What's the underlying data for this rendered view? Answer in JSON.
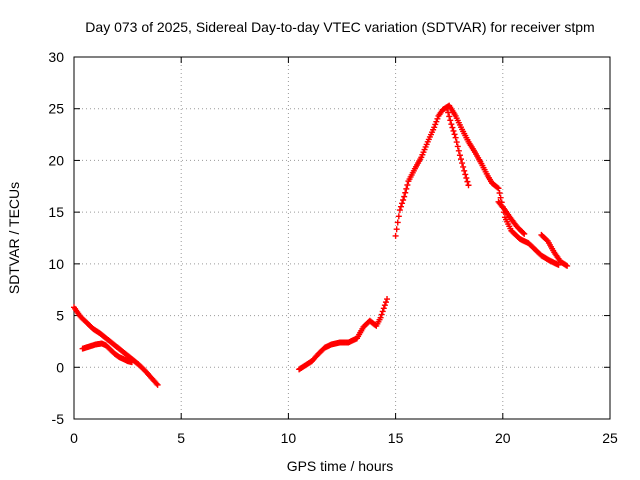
{
  "chart_data": {
    "type": "scatter",
    "title": "Day 073 of 2025, Sidereal Day-to-day VTEC variation (SDTVAR) for receiver stpm",
    "xlabel": "GPS time / hours",
    "ylabel": "SDTVAR / TECUs",
    "xlim": [
      0,
      25
    ],
    "ylim": [
      -5,
      30
    ],
    "x_ticks": [
      0,
      5,
      10,
      15,
      20,
      25
    ],
    "y_ticks": [
      -5,
      0,
      5,
      10,
      15,
      20,
      25,
      30
    ],
    "grid": true,
    "marker": "+",
    "series": [
      {
        "name": "SDTVAR",
        "color": "#ff0000",
        "segments": [
          {
            "points": [
              [
                0.0,
                5.8
              ],
              [
                0.3,
                4.9
              ],
              [
                0.6,
                4.3
              ],
              [
                0.9,
                3.7
              ],
              [
                1.2,
                3.3
              ],
              [
                1.5,
                2.8
              ],
              [
                1.8,
                2.3
              ],
              [
                2.1,
                1.8
              ],
              [
                2.4,
                1.3
              ],
              [
                2.7,
                0.8
              ],
              [
                3.0,
                0.3
              ],
              [
                3.3,
                -0.3
              ],
              [
                3.6,
                -1.0
              ],
              [
                3.9,
                -1.7
              ]
            ]
          },
          {
            "points": [
              [
                0.4,
                1.8
              ],
              [
                0.7,
                2.0
              ],
              [
                1.0,
                2.2
              ],
              [
                1.3,
                2.3
              ],
              [
                1.5,
                2.1
              ],
              [
                1.7,
                1.7
              ],
              [
                1.9,
                1.3
              ],
              [
                2.1,
                1.0
              ],
              [
                2.3,
                0.8
              ],
              [
                2.5,
                0.6
              ],
              [
                2.7,
                0.5
              ]
            ]
          },
          {
            "points": [
              [
                10.5,
                -0.2
              ],
              [
                10.8,
                0.2
              ],
              [
                11.1,
                0.6
              ],
              [
                11.4,
                1.3
              ],
              [
                11.7,
                1.9
              ],
              [
                12.0,
                2.2
              ],
              [
                12.4,
                2.4
              ],
              [
                12.8,
                2.4
              ],
              [
                13.2,
                2.8
              ],
              [
                13.5,
                3.9
              ],
              [
                13.8,
                4.5
              ],
              [
                14.1,
                4.0
              ],
              [
                14.3,
                4.8
              ],
              [
                14.5,
                6.0
              ],
              [
                14.6,
                6.6
              ]
            ]
          },
          {
            "points": [
              [
                15.0,
                12.7
              ],
              [
                15.1,
                14.0
              ],
              [
                15.2,
                15.2
              ],
              [
                15.4,
                16.5
              ],
              [
                15.6,
                18.0
              ],
              [
                15.9,
                19.2
              ],
              [
                16.2,
                20.3
              ],
              [
                16.5,
                21.8
              ],
              [
                16.8,
                23.2
              ],
              [
                17.0,
                24.3
              ],
              [
                17.2,
                24.9
              ],
              [
                17.5,
                25.3
              ],
              [
                17.8,
                24.3
              ],
              [
                18.1,
                23.0
              ],
              [
                18.4,
                21.8
              ],
              [
                18.7,
                20.8
              ],
              [
                19.0,
                19.7
              ],
              [
                19.3,
                18.5
              ],
              [
                19.5,
                17.8
              ],
              [
                19.8,
                17.3
              ],
              [
                20.0,
                15.5
              ],
              [
                20.1,
                14.5
              ],
              [
                20.4,
                13.2
              ],
              [
                20.8,
                12.4
              ],
              [
                21.2,
                12.0
              ],
              [
                21.5,
                11.4
              ],
              [
                21.8,
                10.8
              ],
              [
                22.2,
                10.3
              ],
              [
                22.6,
                9.9
              ]
            ]
          },
          {
            "points": [
              [
                17.4,
                25.0
              ],
              [
                17.6,
                23.5
              ],
              [
                17.8,
                22.2
              ],
              [
                18.0,
                20.5
              ],
              [
                18.2,
                19.0
              ],
              [
                18.4,
                17.6
              ]
            ]
          },
          {
            "points": [
              [
                19.8,
                16.0
              ],
              [
                20.1,
                15.2
              ],
              [
                20.4,
                14.3
              ],
              [
                20.7,
                13.5
              ],
              [
                21.0,
                12.9
              ]
            ]
          },
          {
            "points": [
              [
                21.8,
                12.8
              ],
              [
                22.1,
                12.2
              ],
              [
                22.4,
                11.1
              ],
              [
                22.7,
                10.2
              ],
              [
                23.0,
                9.8
              ]
            ]
          }
        ]
      }
    ]
  }
}
